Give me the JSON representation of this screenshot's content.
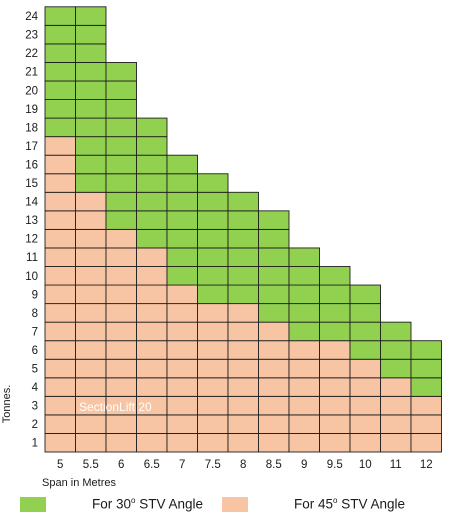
{
  "chart_data": {
    "type": "heatmap",
    "x": [
      "5",
      "5.5",
      "6",
      "6.5",
      "7",
      "7.5",
      "8",
      "8.5",
      "9",
      "9.5",
      "10",
      "11",
      "12"
    ],
    "y": [
      1,
      2,
      3,
      4,
      5,
      6,
      7,
      8,
      9,
      10,
      11,
      12,
      13,
      14,
      15,
      16,
      17,
      18,
      19,
      20,
      21,
      22,
      23,
      24
    ],
    "xlabel": "Span in Metres",
    "ylabel": "Tonnes.",
    "max_tonnes_45": [
      17,
      14,
      12,
      11,
      9,
      8,
      8,
      7,
      6,
      6,
      5,
      4,
      3
    ],
    "max_tonnes_30": [
      24,
      24,
      21,
      18,
      16,
      15,
      14,
      13,
      11,
      10,
      9,
      7,
      6
    ],
    "series": [
      {
        "name": "For 30º STV Angle",
        "color": "#92d050"
      },
      {
        "name": "For 45º STV Angle",
        "color": "#f8c5a4"
      }
    ],
    "annotation": "SectionLift 20",
    "grid": true
  },
  "legend": {
    "item_30": {
      "prefix": "For 30",
      "degree": "o",
      "suffix": " STV Angle"
    },
    "item_45": {
      "prefix": "For 45",
      "degree": "o",
      "suffix": " STV Angle"
    }
  },
  "colors": {
    "green": "#92d050",
    "peach": "#f8c5a4",
    "grid": "#1f1f1f"
  }
}
